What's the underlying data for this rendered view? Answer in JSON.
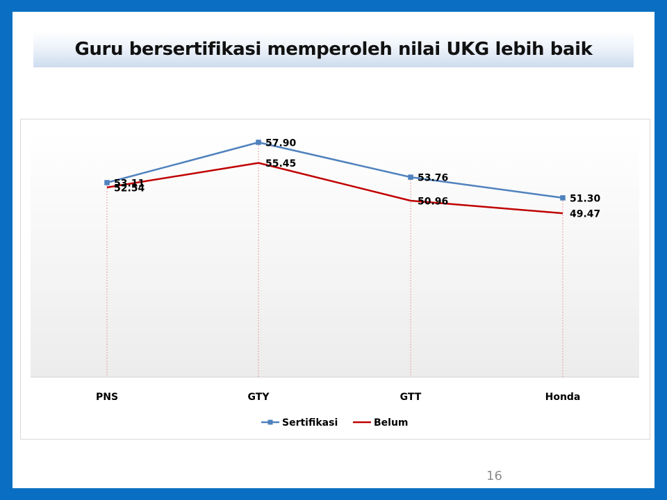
{
  "slide": {
    "title": "Guru bersertifikasi memperoleh nilai UKG lebih baik",
    "page_number": "16"
  },
  "colors": {
    "frame": "#0a6fc2",
    "sertifikasi": "#4f81bd",
    "belum": "#c00000",
    "drop_line": "#e6a0a0"
  },
  "chart_data": {
    "type": "line",
    "title": "",
    "xlabel": "",
    "ylabel": "",
    "categories": [
      "PNS",
      "GTY",
      "GTT",
      "Honda"
    ],
    "series": [
      {
        "name": "Sertifikasi",
        "values": [
          53.11,
          57.9,
          53.76,
          51.3
        ],
        "labels": [
          "53.11",
          "57.90",
          "53.76",
          "51.30"
        ],
        "color": "#4f81bd",
        "marker": "square"
      },
      {
        "name": "Belum",
        "values": [
          52.54,
          55.45,
          50.96,
          49.47
        ],
        "labels": [
          "52.54",
          "55.45",
          "50.96",
          "49.47"
        ],
        "color": "#c00000",
        "marker": "none"
      }
    ],
    "y_axis_visible": false,
    "grid": false,
    "drop_lines": true,
    "legend_position": "bottom"
  }
}
